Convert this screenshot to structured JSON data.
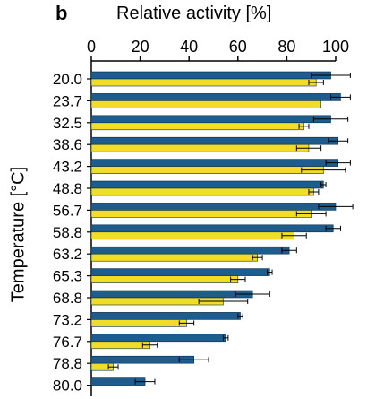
{
  "chart_data": {
    "type": "bar",
    "orientation": "horizontal",
    "panel_label": "b",
    "xlabel": "Relative activity [%]",
    "ylabel": "Temperature [°C]",
    "xlim": [
      0,
      100
    ],
    "xticks": [
      0,
      20,
      40,
      60,
      80,
      100
    ],
    "categories": [
      "20.0",
      "23.7",
      "32.5",
      "38.6",
      "43.2",
      "48.8",
      "56.7",
      "58.8",
      "63.2",
      "65.3",
      "68.8",
      "73.2",
      "76.7",
      "78.8",
      "80.0"
    ],
    "series": [
      {
        "color": "#1d5c8c",
        "values": [
          98,
          102,
          98,
          101,
          101,
          95,
          100,
          99,
          81,
          73,
          66,
          61,
          55,
          42,
          22
        ],
        "errors": [
          8,
          4,
          7,
          4,
          5,
          1,
          7,
          3,
          3,
          1,
          7,
          1,
          1,
          6,
          4
        ]
      },
      {
        "color": "#f2dc2a",
        "values": [
          92,
          94,
          87,
          89,
          95,
          91,
          90,
          83,
          68,
          60,
          54,
          39,
          24,
          9,
          0
        ],
        "errors": [
          3,
          0,
          2,
          5,
          9,
          2,
          6,
          5,
          2,
          3,
          10,
          3,
          3,
          2,
          0
        ]
      }
    ],
    "legend": "none",
    "grid": false
  }
}
